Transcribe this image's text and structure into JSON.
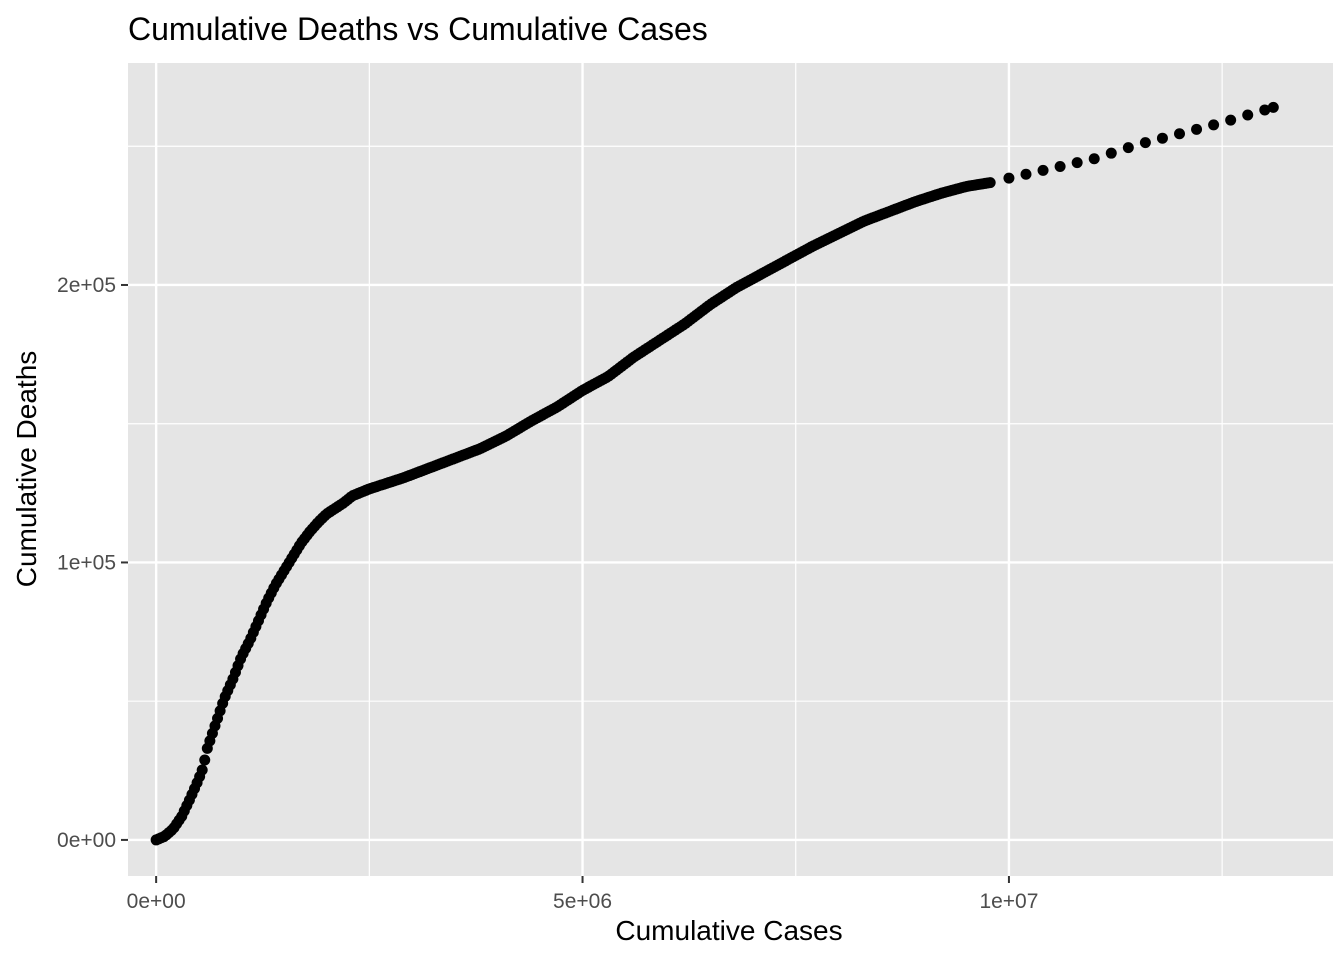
{
  "chart_data": {
    "type": "scatter",
    "title": "Cumulative Deaths vs Cumulative Cases",
    "xlabel": "Cumulative Cases",
    "ylabel": "Cumulative Deaths",
    "xlim": [
      -330000,
      13800000
    ],
    "ylim": [
      -13000,
      280000
    ],
    "x_ticks": [
      {
        "value": 0,
        "label": "0e+00"
      },
      {
        "value": 5000000,
        "label": "5e+06"
      },
      {
        "value": 10000000,
        "label": "1e+07"
      }
    ],
    "y_ticks": [
      {
        "value": 0,
        "label": "0e+00"
      },
      {
        "value": 100000,
        "label": "1e+05"
      },
      {
        "value": 200000,
        "label": "2e+05"
      }
    ],
    "x_minor_breaks": [
      2500000,
      7500000,
      12500000
    ],
    "y_minor_breaks": [
      50000,
      150000,
      250000
    ],
    "grid": true,
    "legend": "none",
    "colors": {
      "panel_background": "#e5e5e5",
      "grid_line": "#ffffff",
      "point": "#000000",
      "tick_label": "#4d4d4d",
      "axis_tick": "#333333"
    },
    "curve_knots": [
      [
        0,
        0
      ],
      [
        100000,
        1300
      ],
      [
        200000,
        4000
      ],
      [
        300000,
        8500
      ],
      [
        400000,
        15000
      ],
      [
        500000,
        22000
      ],
      [
        550000,
        26000
      ],
      [
        600000,
        33000
      ],
      [
        700000,
        42000
      ],
      [
        800000,
        51000
      ],
      [
        900000,
        58000
      ],
      [
        1000000,
        66000
      ],
      [
        1100000,
        72000
      ],
      [
        1200000,
        79000
      ],
      [
        1300000,
        86000
      ],
      [
        1400000,
        92000
      ],
      [
        1500000,
        97000
      ],
      [
        1600000,
        102000
      ],
      [
        1700000,
        107000
      ],
      [
        1800000,
        111000
      ],
      [
        1900000,
        114500
      ],
      [
        2000000,
        117500
      ],
      [
        2100000,
        119500
      ],
      [
        2200000,
        121500
      ],
      [
        2300000,
        124000
      ],
      [
        2500000,
        126500
      ],
      [
        2700000,
        128500
      ],
      [
        2900000,
        130500
      ],
      [
        3200000,
        134000
      ],
      [
        3500000,
        137500
      ],
      [
        3800000,
        141000
      ],
      [
        4100000,
        145500
      ],
      [
        4400000,
        151000
      ],
      [
        4700000,
        156000
      ],
      [
        5000000,
        162000
      ],
      [
        5300000,
        167000
      ],
      [
        5600000,
        174000
      ],
      [
        5900000,
        180000
      ],
      [
        6200000,
        186000
      ],
      [
        6500000,
        193000
      ],
      [
        6800000,
        199000
      ],
      [
        7100000,
        204000
      ],
      [
        7400000,
        209000
      ],
      [
        7700000,
        214000
      ],
      [
        8000000,
        218500
      ],
      [
        8300000,
        223000
      ],
      [
        8600000,
        226500
      ],
      [
        8900000,
        230000
      ],
      [
        9200000,
        233000
      ],
      [
        9500000,
        235500
      ],
      [
        9800000,
        237000
      ],
      [
        10000000,
        238500
      ],
      [
        10500000,
        242000
      ],
      [
        11000000,
        245500
      ],
      [
        11500000,
        250500
      ],
      [
        12000000,
        254500
      ],
      [
        12500000,
        258500
      ],
      [
        13100000,
        264000
      ]
    ],
    "dense_until": 9800000,
    "dense_step": 30000,
    "sparse_step": 200000
  }
}
